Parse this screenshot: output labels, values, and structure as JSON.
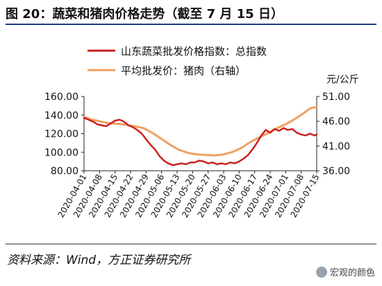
{
  "figure": {
    "title": "图 20：蔬菜和猪肉价格走势（截至 7 月 15 日）",
    "source": "资料来源：Wind，方正证券研究所",
    "watermark": "宏观的颜色",
    "watermark_icon": "wechat-icon"
  },
  "chart_data": {
    "type": "line",
    "right_axis_unit": "元/公斤",
    "xlabel": "",
    "ylabel": "",
    "x_ticks": [
      "2020-04-01",
      "2020-04-08",
      "2020-04-15",
      "2020-04-22",
      "2020-04-29",
      "2020-05-06",
      "2020-05-13",
      "2020-05-20",
      "2020-05-27",
      "2020-06-03",
      "2020-06-10",
      "2020-06-17",
      "2020-06-24",
      "2020-07-01",
      "2020-07-08",
      "2020-07-15"
    ],
    "x_range": [
      "2020-04-01",
      "2020-07-15"
    ],
    "y_left": {
      "range": [
        80,
        160
      ],
      "ticks": [
        "80.00",
        "100.00",
        "120.00",
        "140.00",
        "160.00"
      ]
    },
    "y_right": {
      "range": [
        36,
        51
      ],
      "ticks": [
        "36.00",
        "41.00",
        "46.00",
        "51.00"
      ]
    },
    "grid": false,
    "legend_position": "top",
    "series": [
      {
        "name": "山东蔬菜批发价格指数：总指数",
        "axis": "left",
        "color": "#cc2020",
        "points": [
          [
            "2020-04-01",
            137
          ],
          [
            "2020-04-03",
            135
          ],
          [
            "2020-04-05",
            133
          ],
          [
            "2020-04-07",
            130
          ],
          [
            "2020-04-09",
            129
          ],
          [
            "2020-04-11",
            128
          ],
          [
            "2020-04-13",
            131
          ],
          [
            "2020-04-15",
            134
          ],
          [
            "2020-04-17",
            135
          ],
          [
            "2020-04-19",
            133
          ],
          [
            "2020-04-21",
            129
          ],
          [
            "2020-04-23",
            127
          ],
          [
            "2020-04-25",
            124
          ],
          [
            "2020-04-27",
            120
          ],
          [
            "2020-04-29",
            114
          ],
          [
            "2020-05-01",
            108
          ],
          [
            "2020-05-03",
            103
          ],
          [
            "2020-05-05",
            96
          ],
          [
            "2020-05-07",
            91
          ],
          [
            "2020-05-09",
            88
          ],
          [
            "2020-05-11",
            86
          ],
          [
            "2020-05-13",
            87
          ],
          [
            "2020-05-15",
            88
          ],
          [
            "2020-05-17",
            87
          ],
          [
            "2020-05-19",
            89
          ],
          [
            "2020-05-21",
            89
          ],
          [
            "2020-05-23",
            91
          ],
          [
            "2020-05-25",
            90
          ],
          [
            "2020-05-27",
            88
          ],
          [
            "2020-05-29",
            89
          ],
          [
            "2020-05-31",
            87
          ],
          [
            "2020-06-02",
            88
          ],
          [
            "2020-06-04",
            87
          ],
          [
            "2020-06-06",
            89
          ],
          [
            "2020-06-08",
            88
          ],
          [
            "2020-06-10",
            90
          ],
          [
            "2020-06-12",
            93
          ],
          [
            "2020-06-14",
            97
          ],
          [
            "2020-06-16",
            103
          ],
          [
            "2020-06-18",
            110
          ],
          [
            "2020-06-20",
            118
          ],
          [
            "2020-06-22",
            124
          ],
          [
            "2020-06-24",
            121
          ],
          [
            "2020-06-26",
            125
          ],
          [
            "2020-06-28",
            123
          ],
          [
            "2020-06-30",
            126
          ],
          [
            "2020-07-02",
            124
          ],
          [
            "2020-07-04",
            125
          ],
          [
            "2020-07-06",
            121
          ],
          [
            "2020-07-08",
            119
          ],
          [
            "2020-07-10",
            118
          ],
          [
            "2020-07-12",
            120
          ],
          [
            "2020-07-14",
            118
          ],
          [
            "2020-07-15",
            119
          ]
        ]
      },
      {
        "name": "平均批发价：猪肉（右轴）",
        "axis": "right",
        "color": "#f0a060",
        "points": [
          [
            "2020-04-01",
            46.9
          ],
          [
            "2020-04-04",
            46.4
          ],
          [
            "2020-04-08",
            46.0
          ],
          [
            "2020-04-12",
            45.6
          ],
          [
            "2020-04-16",
            45.5
          ],
          [
            "2020-04-20",
            45.3
          ],
          [
            "2020-04-24",
            45.0
          ],
          [
            "2020-04-28",
            44.6
          ],
          [
            "2020-05-02",
            43.6
          ],
          [
            "2020-05-06",
            42.4
          ],
          [
            "2020-05-10",
            41.2
          ],
          [
            "2020-05-14",
            40.2
          ],
          [
            "2020-05-18",
            39.6
          ],
          [
            "2020-05-22",
            39.3
          ],
          [
            "2020-05-26",
            39.2
          ],
          [
            "2020-05-30",
            39.1
          ],
          [
            "2020-06-03",
            39.3
          ],
          [
            "2020-06-07",
            39.8
          ],
          [
            "2020-06-11",
            40.6
          ],
          [
            "2020-06-15",
            41.8
          ],
          [
            "2020-06-19",
            42.7
          ],
          [
            "2020-06-23",
            43.6
          ],
          [
            "2020-06-27",
            44.6
          ],
          [
            "2020-07-01",
            45.4
          ],
          [
            "2020-07-05",
            46.4
          ],
          [
            "2020-07-09",
            47.6
          ],
          [
            "2020-07-12",
            48.6
          ],
          [
            "2020-07-15",
            48.9
          ]
        ]
      }
    ]
  }
}
